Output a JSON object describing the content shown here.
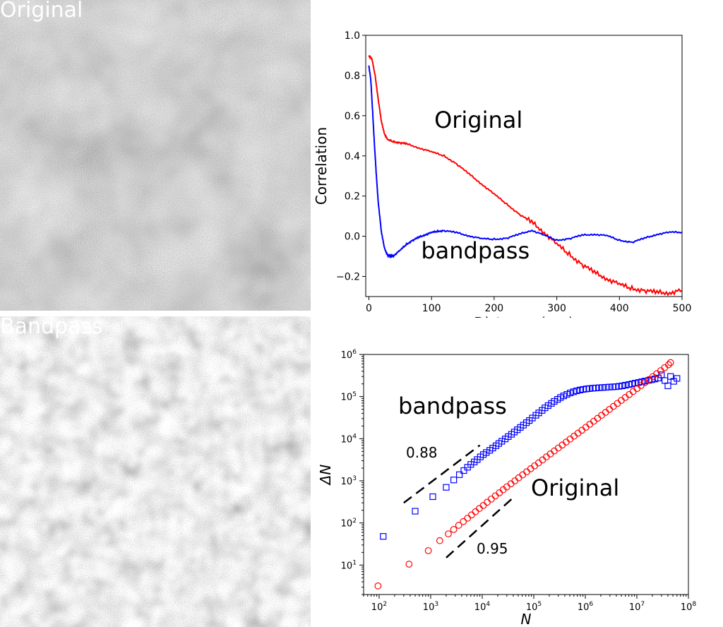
{
  "panels": {
    "original_label": "Original",
    "bandpass_label": "Bandpass"
  },
  "chart_data": [
    {
      "type": "line",
      "xlabel": "Distance (um)",
      "ylabel": "Correlation",
      "xlim": [
        -5,
        500
      ],
      "ylim": [
        -0.3,
        1.0
      ],
      "xticks": [
        0,
        100,
        200,
        300,
        400,
        500
      ],
      "yticks": [
        -0.2,
        0.0,
        0.2,
        0.4,
        0.6,
        0.8,
        1.0
      ],
      "ytick_labels": [
        "−0.2",
        "0.0",
        "0.2",
        "0.4",
        "0.6",
        "0.8",
        "1.0"
      ],
      "series": [
        {
          "color": "#ff0000",
          "x": [
            0,
            5,
            10,
            15,
            20,
            25,
            30,
            40,
            50,
            60,
            80,
            100,
            120,
            140,
            160,
            180,
            200,
            220,
            240,
            260,
            280,
            300,
            320,
            340,
            360,
            380,
            400,
            420,
            440,
            460,
            480,
            500
          ],
          "y": [
            0.9,
            0.88,
            0.8,
            0.68,
            0.57,
            0.51,
            0.48,
            0.47,
            0.465,
            0.46,
            0.44,
            0.42,
            0.4,
            0.36,
            0.31,
            0.26,
            0.21,
            0.16,
            0.11,
            0.07,
            0.02,
            -0.04,
            -0.09,
            -0.14,
            -0.18,
            -0.21,
            -0.24,
            -0.26,
            -0.27,
            -0.28,
            -0.28,
            -0.27
          ]
        },
        {
          "color": "#0000ff",
          "x": [
            0,
            3,
            6,
            9,
            12,
            15,
            20,
            25,
            30,
            35,
            40,
            50,
            60,
            70,
            80,
            90,
            100,
            110,
            120,
            140,
            160,
            180,
            200,
            220,
            240,
            260,
            280,
            300,
            320,
            340,
            360,
            380,
            400,
            420,
            440,
            460,
            480,
            500
          ],
          "y": [
            0.85,
            0.78,
            0.62,
            0.45,
            0.3,
            0.17,
            0.02,
            -0.06,
            -0.095,
            -0.1,
            -0.095,
            -0.07,
            -0.04,
            -0.02,
            -0.005,
            0.008,
            0.018,
            0.025,
            0.028,
            0.018,
            0.002,
            -0.012,
            -0.015,
            -0.01,
            0.01,
            0.03,
            0.005,
            -0.02,
            -0.012,
            0.005,
            0.01,
            0.003,
            -0.02,
            -0.03,
            -0.01,
            0.01,
            0.02,
            0.02
          ]
        }
      ],
      "annotations": [
        {
          "text": "Original",
          "x": 175,
          "y": 0.54
        },
        {
          "text": "bandpass",
          "x": 170,
          "y": -0.11
        }
      ]
    },
    {
      "type": "scatter",
      "xlabel": "N",
      "ylabel": "ΔN",
      "xscale": "log",
      "yscale": "log",
      "xlim": [
        50,
        100000000
      ],
      "ylim": [
        2,
        1000000
      ],
      "xticks": [
        100,
        1000,
        10000,
        100000,
        1000000,
        10000000,
        100000000
      ],
      "xtick_base": "10",
      "xtick_exponents": [
        "2",
        "3",
        "4",
        "5",
        "6",
        "7",
        "8"
      ],
      "yticks": [
        10,
        100,
        1000,
        10000,
        100000,
        1000000
      ],
      "ytick_base": "10",
      "ytick_exponents": [
        "1",
        "2",
        "3",
        "4",
        "5",
        "6"
      ],
      "series": [
        {
          "marker": "square",
          "color": "#0000ff",
          "x": [
            120,
            500,
            1100,
            2000,
            2800,
            3600,
            4400,
            5200,
            6000,
            7000,
            8000,
            9200,
            10500,
            12000,
            14000,
            16000,
            18500,
            21000,
            24000,
            28000,
            32000,
            37000,
            42000,
            48000,
            55000,
            63000,
            72000,
            82000,
            94000,
            110000,
            125000,
            145000,
            165000,
            190000,
            220000,
            250000,
            290000,
            330000,
            380000,
            440000,
            510000,
            590000,
            680000,
            790000,
            910000,
            1050000,
            1200000,
            1400000,
            1600000,
            1850000,
            2150000,
            2500000,
            2900000,
            3400000,
            3900000,
            4500000,
            5200000,
            6000000,
            7000000,
            8100000,
            9300000,
            10800000,
            12500000,
            14500000,
            17000000,
            19500000,
            22500000,
            26000000,
            30000000,
            35000000,
            40000000,
            45000000,
            52000000,
            60000000
          ],
          "y": [
            48,
            190,
            420,
            700,
            1050,
            1400,
            1750,
            2100,
            2450,
            2800,
            3200,
            3700,
            4200,
            4700,
            5300,
            6000,
            6800,
            7700,
            8700,
            9900,
            11200,
            12700,
            14400,
            16300,
            18500,
            21000,
            24000,
            27000,
            31000,
            36000,
            41000,
            47000,
            54000,
            61000,
            69000,
            77000,
            86000,
            95000,
            104000,
            113000,
            122000,
            130000,
            137000,
            143000,
            148000,
            152000,
            155000,
            158000,
            160000,
            162000,
            164000,
            166000,
            168000,
            170000,
            172000,
            175000,
            180000,
            186000,
            193000,
            200000,
            208000,
            216000,
            225000,
            234000,
            243000,
            252000,
            262000,
            275000,
            330000,
            240000,
            180000,
            300000,
            230000,
            270000
          ]
        },
        {
          "marker": "circle",
          "color": "#ff0000",
          "x": [
            95,
            380,
            900,
            1500,
            2200,
            2800,
            3500,
            4300,
            5200,
            6200,
            7400,
            8800,
            10500,
            12500,
            15000,
            18000,
            21500,
            25500,
            30000,
            36000,
            43000,
            51000,
            61000,
            73000,
            87000,
            104000,
            124000,
            148000,
            176000,
            210000,
            250000,
            300000,
            357000,
            425000,
            507000,
            605000,
            720000,
            860000,
            1025000,
            1220000,
            1455000,
            1735000,
            2070000,
            2470000,
            2945000,
            3510000,
            4185000,
            4990000,
            5950000,
            7100000,
            8460000,
            10090000,
            12030000,
            14340000,
            17100000,
            20390000,
            24310000,
            28990000,
            34570000,
            41220000,
            45000000
          ],
          "y": [
            3.2,
            10.5,
            22,
            38,
            55,
            70,
            88,
            108,
            130,
            155,
            185,
            220,
            260,
            310,
            370,
            440,
            520,
            615,
            720,
            850,
            1000,
            1180,
            1390,
            1640,
            1930,
            2270,
            2670,
            3140,
            3700,
            4350,
            5120,
            6020,
            7080,
            8330,
            9800,
            11500,
            13500,
            15900,
            18700,
            22000,
            25900,
            30500,
            35900,
            42200,
            49700,
            58500,
            68800,
            81000,
            95300,
            112000,
            132000,
            155000,
            183000,
            215000,
            253000,
            298000,
            350000,
            412000,
            485000,
            570000,
            640000
          ]
        }
      ],
      "reference_lines": [
        {
          "label": "0.88",
          "x": [
            300,
            9000
          ],
          "y": [
            300,
            7000
          ]
        },
        {
          "label": "0.95",
          "x": [
            2000,
            40000
          ],
          "y": [
            15,
            400
          ]
        }
      ],
      "annotations": [
        {
          "text": "bandpass",
          "x": 2500,
          "y": 110000
        },
        {
          "text": "Original",
          "x": 300000,
          "y": 800
        }
      ]
    }
  ]
}
